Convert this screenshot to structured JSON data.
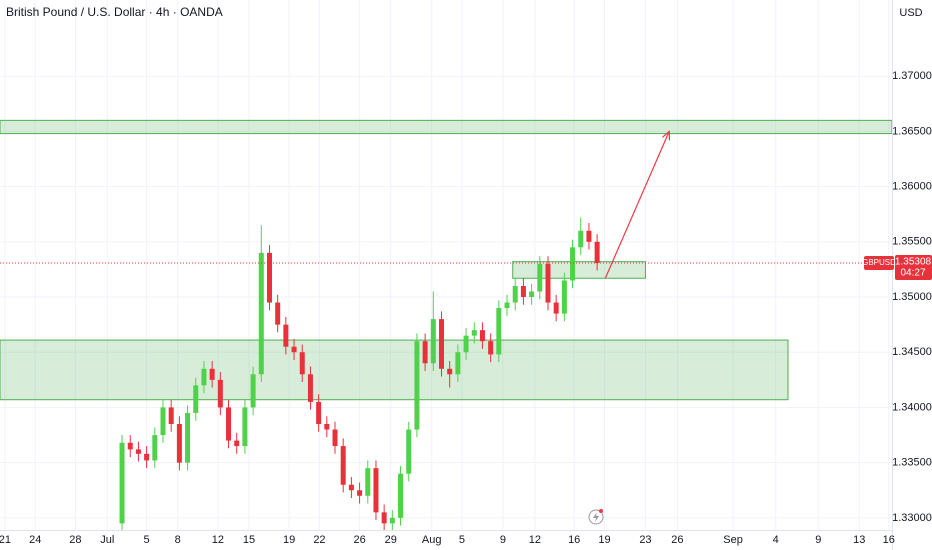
{
  "chart_data": {
    "type": "candlestick",
    "title": "British Pound / U.S. Dollar · 4h · OANDA",
    "y_axis_label": "USD",
    "symbol": "GBPUSD",
    "last_price": {
      "value": 1.35308,
      "label": "1.35308"
    },
    "countdown": "04:27",
    "up_color": "#4fd24a",
    "down_color": "#e8323b",
    "zone_color": "#4caf50",
    "arrow_color": "#f23645",
    "grid": true,
    "ylim": [
      1.3289,
      1.3769
    ],
    "xlim": [
      -14.9,
      94
    ],
    "yticks": [
      {
        "value": 1.33,
        "label": "1.33000"
      },
      {
        "value": 1.335,
        "label": "1.33500"
      },
      {
        "value": 1.34,
        "label": "1.34000"
      },
      {
        "value": 1.345,
        "label": "1.34500"
      },
      {
        "value": 1.35,
        "label": "1.35000"
      },
      {
        "value": 1.355,
        "label": "1.35500"
      },
      {
        "value": 1.36,
        "label": "1.36000"
      },
      {
        "value": 1.365,
        "label": "1.36500"
      },
      {
        "value": 1.37,
        "label": "1.37000"
      }
    ],
    "xticks": [
      {
        "value": -14.3,
        "label": "21"
      },
      {
        "value": -10.6,
        "label": "24"
      },
      {
        "value": -5.7,
        "label": "28"
      },
      {
        "value": -1.8,
        "label": "Jul"
      },
      {
        "value": 3.0,
        "label": "5"
      },
      {
        "value": 6.8,
        "label": "8"
      },
      {
        "value": 11.7,
        "label": "12"
      },
      {
        "value": 15.5,
        "label": "15"
      },
      {
        "value": 20.4,
        "label": "19"
      },
      {
        "value": 24.1,
        "label": "22"
      },
      {
        "value": 29.0,
        "label": "26"
      },
      {
        "value": 32.8,
        "label": "29"
      },
      {
        "value": 37.8,
        "label": "Aug"
      },
      {
        "value": 41.5,
        "label": "5"
      },
      {
        "value": 46.5,
        "label": "9"
      },
      {
        "value": 50.4,
        "label": "12"
      },
      {
        "value": 55.2,
        "label": "16"
      },
      {
        "value": 58.9,
        "label": "19"
      },
      {
        "value": 63.9,
        "label": "23"
      },
      {
        "value": 67.8,
        "label": "26"
      },
      {
        "value": 74.6,
        "label": "Sep"
      },
      {
        "value": 79.8,
        "label": "4"
      },
      {
        "value": 85.0,
        "label": "9"
      },
      {
        "value": 90.0,
        "label": "13"
      },
      {
        "value": 93.6,
        "label": "16"
      }
    ],
    "open": [
      1.3295,
      1.3368,
      1.3362,
      1.3358,
      1.3352,
      1.3375,
      1.34,
      1.3385,
      1.335,
      1.3395,
      1.342,
      1.3435,
      1.3425,
      1.34,
      1.337,
      1.3365,
      1.34,
      1.343,
      1.354,
      1.3495,
      1.3475,
      1.3455,
      1.345,
      1.343,
      1.3405,
      1.3385,
      1.338,
      1.3365,
      1.333,
      1.3325,
      1.332,
      1.3345,
      1.3305,
      1.3295,
      1.33,
      1.334,
      1.338,
      1.346,
      1.344,
      1.348,
      1.3435,
      1.343,
      1.345,
      1.3465,
      1.347,
      1.346,
      1.3448,
      1.349,
      1.3495,
      1.351,
      1.35,
      1.3505,
      1.353,
      1.3495,
      1.3485,
      1.3515,
      1.3545,
      1.356,
      1.355
    ],
    "high": [
      1.3375,
      1.3375,
      1.3369,
      1.3365,
      1.3382,
      1.3407,
      1.3407,
      1.3392,
      1.3402,
      1.3427,
      1.3442,
      1.3442,
      1.3432,
      1.3407,
      1.3377,
      1.3407,
      1.3437,
      1.3565,
      1.3547,
      1.3502,
      1.3482,
      1.3462,
      1.3457,
      1.3437,
      1.3412,
      1.3392,
      1.3387,
      1.3372,
      1.3337,
      1.3332,
      1.3352,
      1.3352,
      1.3312,
      1.3307,
      1.3347,
      1.3387,
      1.3467,
      1.3467,
      1.3505,
      1.3487,
      1.3442,
      1.3457,
      1.3472,
      1.3477,
      1.3477,
      1.3467,
      1.3497,
      1.3502,
      1.3517,
      1.3517,
      1.3512,
      1.3537,
      1.3537,
      1.3502,
      1.3522,
      1.3552,
      1.3572,
      1.3567,
      1.3557
    ],
    "low": [
      1.3288,
      1.3355,
      1.3351,
      1.3345,
      1.3345,
      1.3368,
      1.3378,
      1.3343,
      1.3343,
      1.3388,
      1.3413,
      1.3418,
      1.3393,
      1.3363,
      1.3358,
      1.3358,
      1.3393,
      1.3423,
      1.3488,
      1.3468,
      1.3448,
      1.3443,
      1.3423,
      1.3398,
      1.3378,
      1.3373,
      1.3358,
      1.3323,
      1.3318,
      1.3313,
      1.3313,
      1.3298,
      1.3288,
      1.3288,
      1.3293,
      1.3333,
      1.3373,
      1.3433,
      1.3433,
      1.3428,
      1.3418,
      1.3423,
      1.3443,
      1.3458,
      1.3453,
      1.3441,
      1.3441,
      1.3483,
      1.3488,
      1.3493,
      1.3493,
      1.3498,
      1.3488,
      1.3478,
      1.3478,
      1.3508,
      1.3538,
      1.3543,
      1.3524
    ],
    "close": [
      1.3368,
      1.3362,
      1.3358,
      1.3352,
      1.3375,
      1.34,
      1.3385,
      1.335,
      1.3395,
      1.342,
      1.3435,
      1.3425,
      1.34,
      1.337,
      1.3365,
      1.34,
      1.343,
      1.354,
      1.3495,
      1.3475,
      1.3455,
      1.345,
      1.343,
      1.3405,
      1.3385,
      1.338,
      1.3365,
      1.333,
      1.3325,
      1.332,
      1.3345,
      1.3305,
      1.3295,
      1.33,
      1.334,
      1.338,
      1.346,
      1.344,
      1.348,
      1.3435,
      1.343,
      1.345,
      1.3465,
      1.347,
      1.346,
      1.3448,
      1.349,
      1.3495,
      1.351,
      1.35,
      1.3505,
      1.353,
      1.3495,
      1.3485,
      1.3515,
      1.3545,
      1.356,
      1.355,
      1.35308
    ],
    "zones": [
      {
        "x": [
          -14.9,
          94
        ],
        "y": [
          1.3648,
          1.366
        ]
      },
      {
        "x": [
          -14.9,
          81.3
        ],
        "y": [
          1.3407,
          1.3461
        ]
      },
      {
        "x": [
          47.7,
          63.9
        ],
        "y": [
          1.3517,
          1.3532
        ]
      }
    ],
    "arrow": {
      "x": [
        59.0,
        66.8
      ],
      "y": [
        1.3517,
        1.365
      ]
    }
  }
}
